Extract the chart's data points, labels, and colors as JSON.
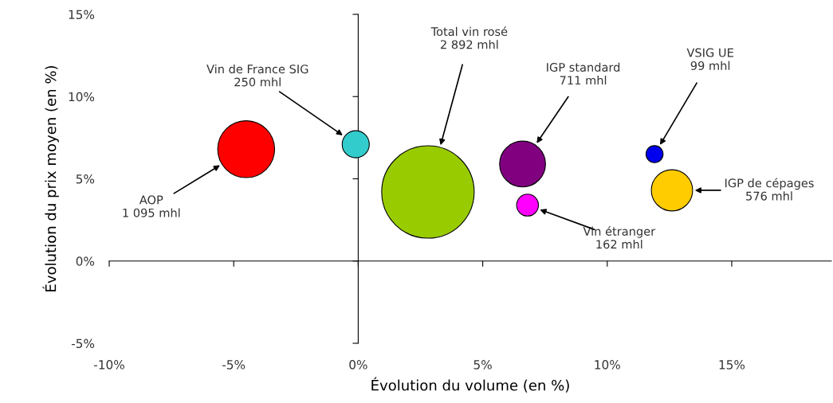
{
  "chart_data": {
    "type": "bubble",
    "xlabel": "Évolution du volume (en %)",
    "ylabel": "Évolution du prix moyen (en %)",
    "xlim": [
      -10,
      19
    ],
    "ylim": [
      -5,
      15
    ],
    "xticks": [
      {
        "value": -10,
        "label": "-10%"
      },
      {
        "value": -5,
        "label": "-5%"
      },
      {
        "value": 0,
        "label": "0%"
      },
      {
        "value": 5,
        "label": "5%"
      },
      {
        "value": 10,
        "label": "10%"
      },
      {
        "value": 15,
        "label": "15%"
      }
    ],
    "yticks": [
      {
        "value": -5,
        "label": "-5%"
      },
      {
        "value": 0,
        "label": "0%"
      },
      {
        "value": 5,
        "label": "5%"
      },
      {
        "value": 10,
        "label": "10%"
      },
      {
        "value": 15,
        "label": "15%"
      }
    ],
    "x": [
      -4.5,
      -0.1,
      2.8,
      6.6,
      6.8,
      11.9,
      12.6
    ],
    "values": [
      6.8,
      7.1,
      4.2,
      5.9,
      3.4,
      6.5,
      4.3
    ],
    "sizes": [
      0.379,
      0.086,
      1,
      0.246,
      0.056,
      0.034,
      0.199
    ],
    "colors": [
      "#ff0000",
      "#33cccc",
      "#99cc00",
      "#800080",
      "#ff00ff",
      "#0000ee",
      "#ffcc00"
    ],
    "annotations": [
      "AOP\n1 095 mhl",
      "Vin de France SIG\n250 mhl",
      "Total vin rosé\n2 892 mhl",
      "IGP standard\n711 mhl",
      "Vin étranger\n162 mhl",
      "VSIG UE\n99 mhl",
      "IGP de cépages\n576 mhl"
    ]
  }
}
